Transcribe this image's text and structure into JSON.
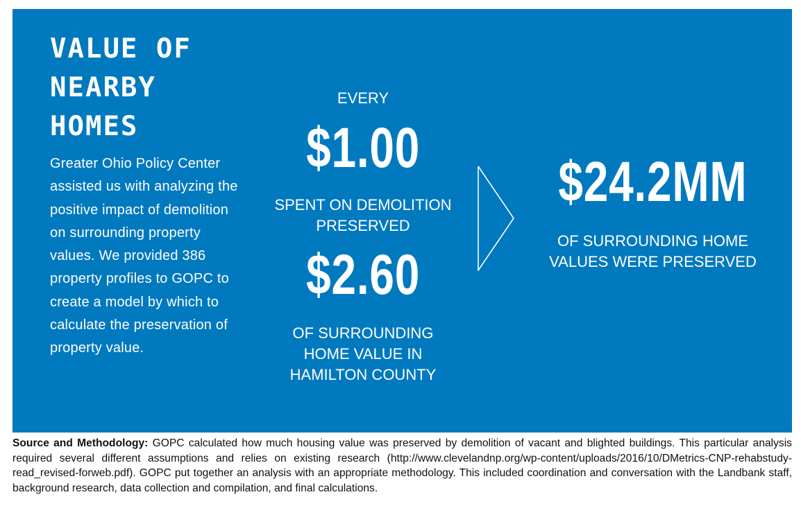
{
  "heading": [
    "VALUE OF",
    "NEARBY",
    "HOMES"
  ],
  "intro_text": "Greater Ohio Policy Center assisted us with analyzing the positive impact of demolition on surrounding property values. We provided 386 property profiles to GOPC to create a model by which to calculate the preservation of property value.",
  "middle": {
    "every": "EVERY",
    "amount_spent": "$1.00",
    "spent_line1": "SPENT ON DEMOLITION",
    "spent_line2": "PRESERVED",
    "amount_preserved": "$2.60",
    "desc_line1": "OF SURROUNDING",
    "desc_line2": "HOME VALUE IN",
    "desc_line3": "HAMILTON COUNTY"
  },
  "right": {
    "total": "$24.2MM",
    "desc_line1": "OF SURROUNDING HOME",
    "desc_line2": "VALUES WERE PRESERVED"
  },
  "footnote": {
    "label": "Source and Methodology:",
    "text": " GOPC calculated how much housing value was preserved by demolition of vacant and blighted buildings. This particular analysis required several different assumptions and relies on existing research (http://www.clevelandnp.org/wp-content/uploads/2016/10/DMetrics-CNP-rehabstudy-read_revised-forweb.pdf). GOPC put together an analysis with an appropriate methodology. This included coordination and conversation with the Landbank staff, background research, data collection and compilation, and final calculations."
  },
  "colors": {
    "panel_background": "#0079bf",
    "text_on_panel": "#ffffff",
    "footnote_text": "#111111"
  },
  "icons": {
    "divider": "chevron-right-outline-icon"
  }
}
